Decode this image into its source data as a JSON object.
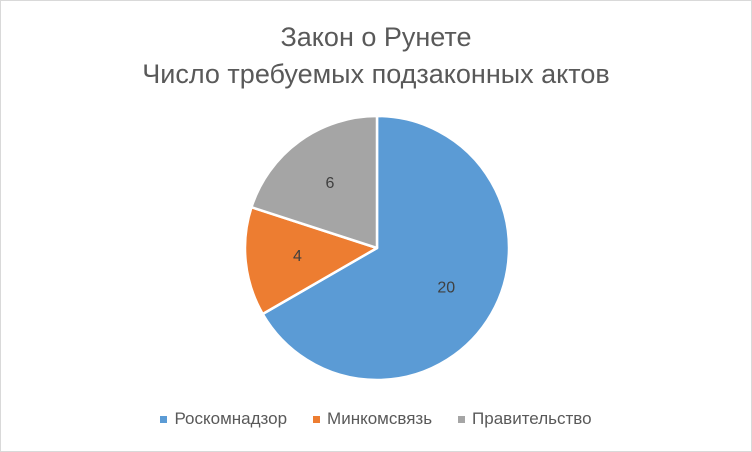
{
  "chart_data": {
    "type": "pie",
    "title": "Закон о Рунете",
    "subtitle": "Число требуемых подзаконных актов",
    "categories": [
      "Роскомнадзор",
      "Минкомсвязь",
      "Правительство"
    ],
    "values": [
      20,
      4,
      6
    ],
    "colors": [
      "#5b9bd5",
      "#ed7d31",
      "#a5a5a5"
    ],
    "data_labels": [
      "20",
      "4",
      "6"
    ],
    "legend_position": "bottom",
    "start_angle_deg": 0,
    "direction": "clockwise"
  }
}
